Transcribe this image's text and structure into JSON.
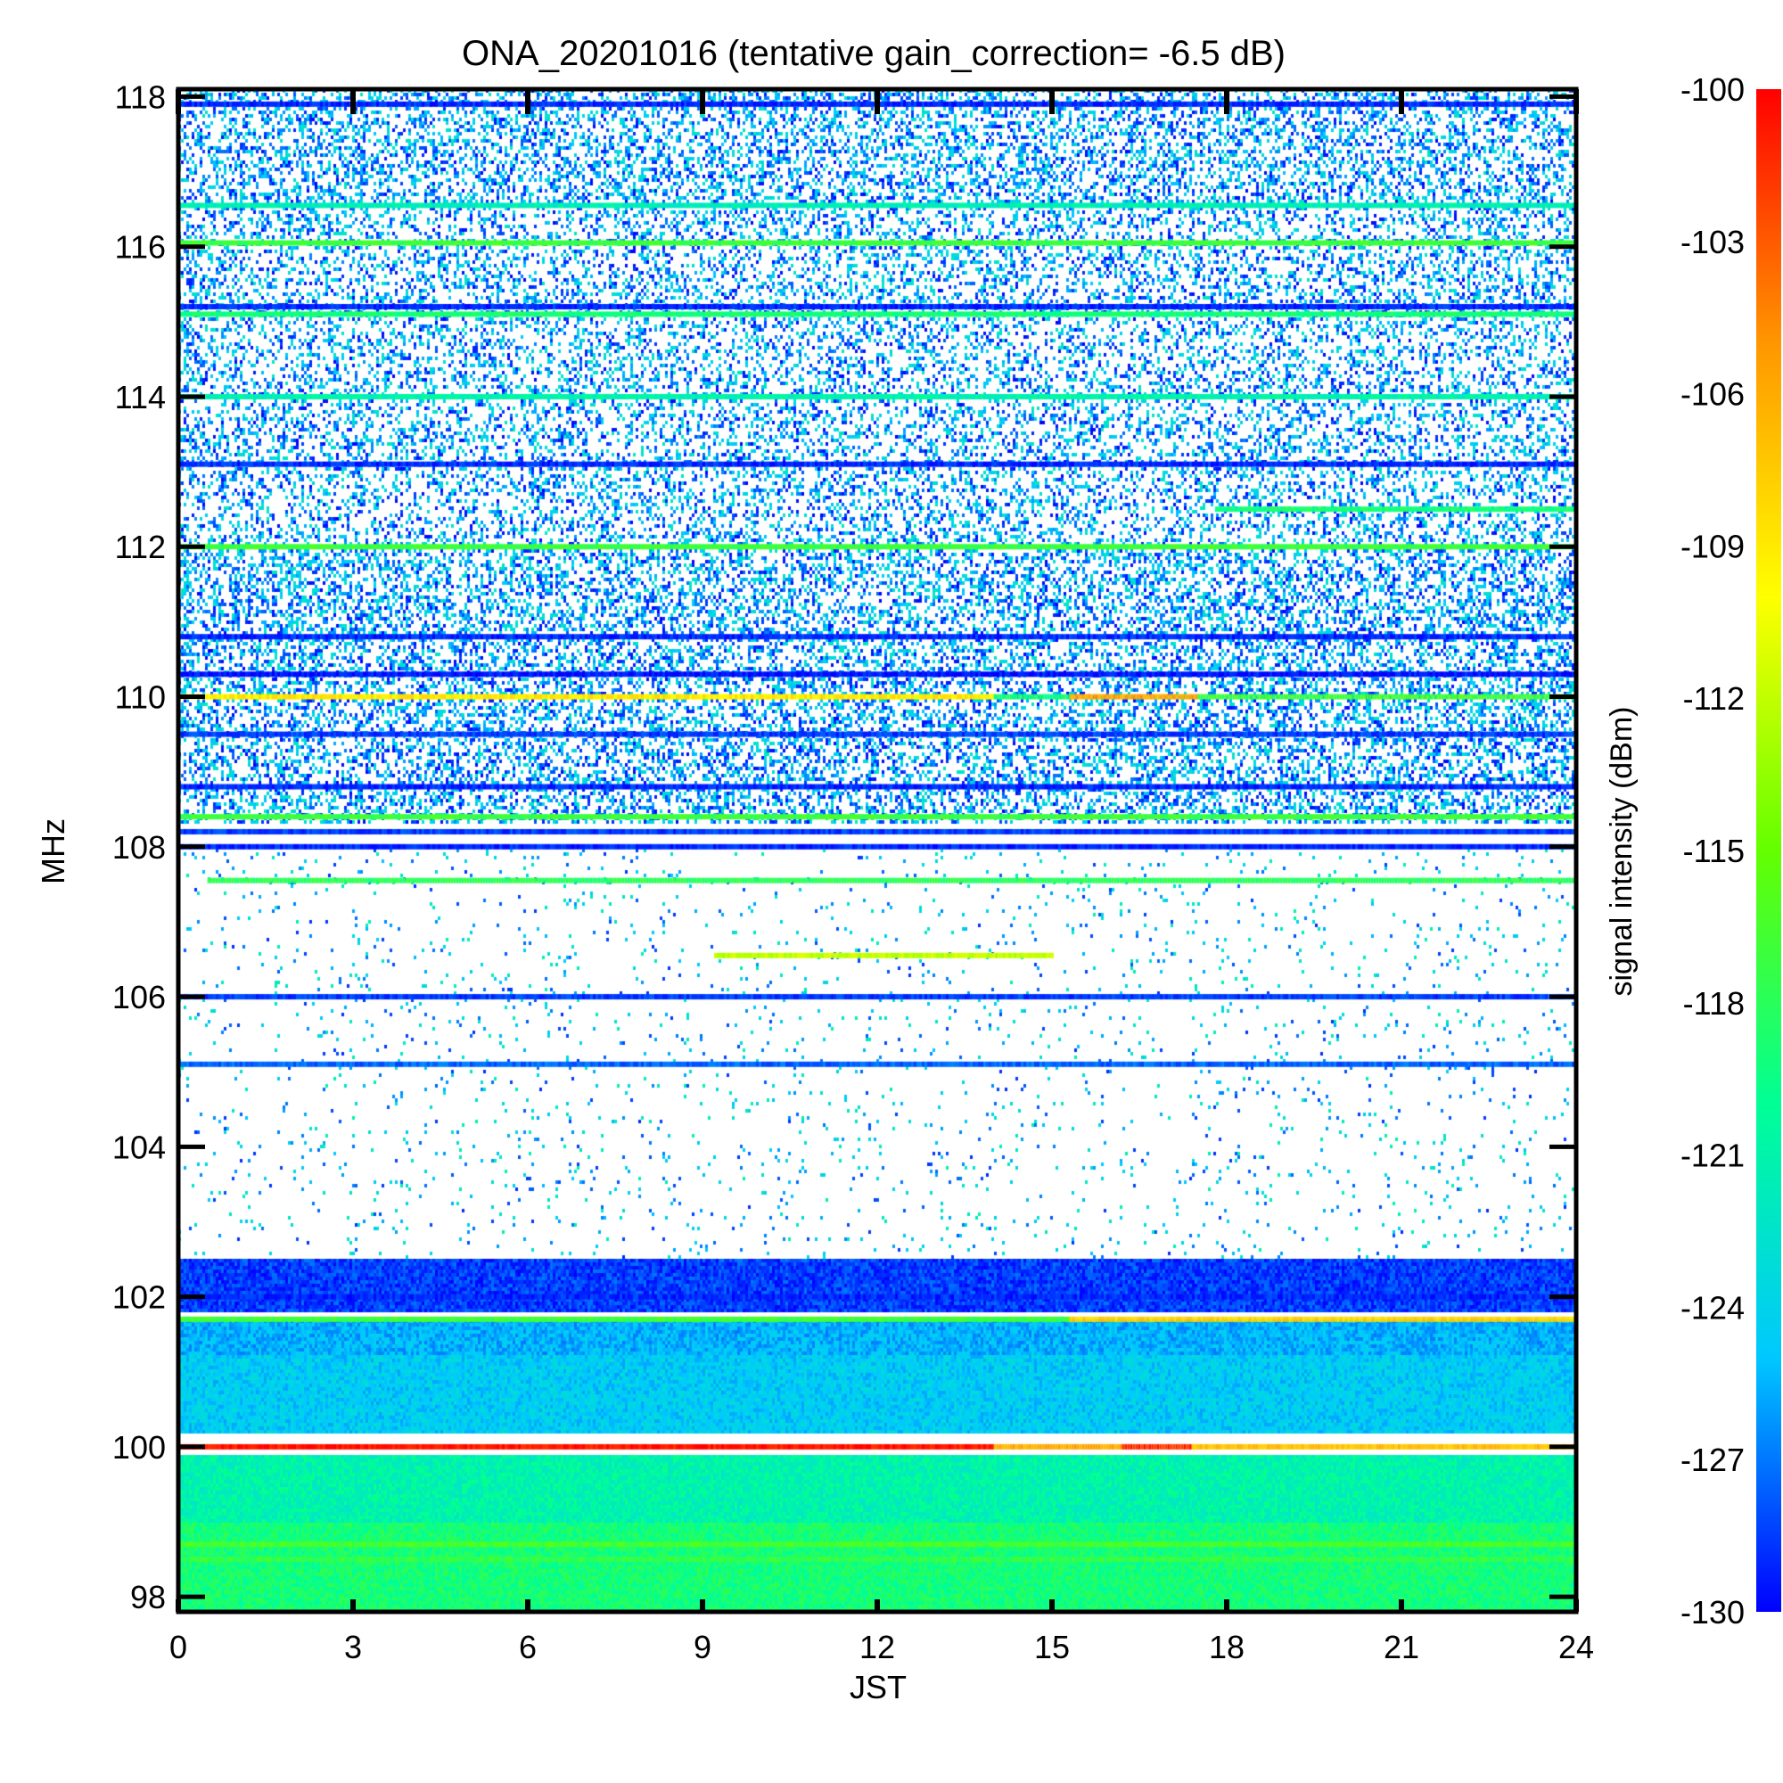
{
  "chart_data": {
    "type": "heatmap",
    "title": "ONA_20201016 (tentative gain_correction= -6.5 dB)",
    "xlabel": "JST",
    "ylabel": "MHz",
    "xlim": [
      0,
      24
    ],
    "ylim": [
      97.8,
      118.1
    ],
    "x_ticks": [
      "0",
      "3",
      "6",
      "9",
      "12",
      "15",
      "18",
      "21",
      "24"
    ],
    "y_ticks": [
      "98",
      "100",
      "102",
      "104",
      "106",
      "108",
      "110",
      "112",
      "114",
      "116",
      "118"
    ],
    "colorbar": {
      "label": "signal intensity (dBm)",
      "range": [
        -130,
        -100
      ],
      "ticks": [
        "-100",
        "-103",
        "-106",
        "-109",
        "-112",
        "-115",
        "-118",
        "-121",
        "-124",
        "-127",
        "-130"
      ],
      "colormap": [
        "#0000ff",
        "#00c8ff",
        "#00ff96",
        "#64ff00",
        "#ffff00",
        "#ff9600",
        "#ff0000"
      ]
    },
    "noise_floor_dbm": -131,
    "bands": [
      {
        "f0": 97.8,
        "f1": 99.0,
        "x0": 0,
        "x1": 24,
        "level": -119,
        "density": 1.0
      },
      {
        "f0": 99.0,
        "f1": 99.9,
        "x0": 0,
        "x1": 24,
        "level": -121,
        "density": 1.0
      },
      {
        "f0": 100.2,
        "f1": 101.2,
        "x0": 0,
        "x1": 24,
        "level": -124.5,
        "density": 1.0
      },
      {
        "f0": 101.2,
        "f1": 101.7,
        "x0": 0,
        "x1": 24,
        "level": -125.5,
        "density": 1.0
      },
      {
        "f0": 101.8,
        "f1": 102.5,
        "x0": 0,
        "x1": 24,
        "level": -128.5,
        "density": 1.0
      },
      {
        "f0": 102.5,
        "f1": 108.0,
        "x0": 0,
        "x1": 24,
        "level": -128,
        "density": 0.04
      },
      {
        "f0": 108.3,
        "f1": 112.0,
        "x0": 0,
        "x1": 24,
        "level": -129,
        "density": 0.42
      },
      {
        "f0": 112.0,
        "f1": 116.6,
        "x0": 0,
        "x1": 24,
        "level": -129,
        "density": 0.32
      },
      {
        "f0": 116.6,
        "f1": 118.1,
        "x0": 0,
        "x1": 24,
        "level": -129,
        "density": 0.38
      }
    ],
    "lines": [
      {
        "freq": 98.7,
        "x0": 0,
        "x1": 24,
        "level": -116.5
      },
      {
        "freq": 98.5,
        "x0": 0,
        "x1": 24,
        "level": -117.5
      },
      {
        "freq": 100.0,
        "x0": 0,
        "x1": 14.0,
        "level": -100.8
      },
      {
        "freq": 100.0,
        "x0": 14.0,
        "x1": 16.2,
        "level": -106
      },
      {
        "freq": 100.0,
        "x0": 16.2,
        "x1": 17.4,
        "level": -101.5
      },
      {
        "freq": 100.0,
        "x0": 17.4,
        "x1": 24,
        "level": -107
      },
      {
        "freq": 101.7,
        "x0": 0,
        "x1": 15.3,
        "level": -117
      },
      {
        "freq": 101.7,
        "x0": 15.3,
        "x1": 24,
        "level": -108
      },
      {
        "freq": 102.0,
        "x0": 0,
        "x1": 24,
        "level": -129
      },
      {
        "freq": 105.1,
        "x0": 0,
        "x1": 24,
        "level": -127.5
      },
      {
        "freq": 106.0,
        "x0": 0,
        "x1": 24,
        "level": -128.5
      },
      {
        "freq": 106.55,
        "x0": 9.2,
        "x1": 15.0,
        "level": -112
      },
      {
        "freq": 107.55,
        "x0": 0.5,
        "x1": 24,
        "level": -118
      },
      {
        "freq": 108.0,
        "x0": 0,
        "x1": 24,
        "level": -129
      },
      {
        "freq": 108.2,
        "x0": 0,
        "x1": 24,
        "level": -128.5
      },
      {
        "freq": 108.4,
        "x0": 0,
        "x1": 24,
        "level": -117
      },
      {
        "freq": 108.8,
        "x0": 0,
        "x1": 24,
        "level": -129
      },
      {
        "freq": 109.5,
        "x0": 0,
        "x1": 24,
        "level": -128.5
      },
      {
        "freq": 110.0,
        "x0": 0,
        "x1": 14.0,
        "level": -109
      },
      {
        "freq": 110.0,
        "x0": 14.0,
        "x1": 15.3,
        "level": -119
      },
      {
        "freq": 110.0,
        "x0": 15.3,
        "x1": 17.5,
        "level": -106
      },
      {
        "freq": 110.0,
        "x0": 17.5,
        "x1": 24,
        "level": -117
      },
      {
        "freq": 110.3,
        "x0": 0,
        "x1": 24,
        "level": -129.5
      },
      {
        "freq": 110.8,
        "x0": 0,
        "x1": 24,
        "level": -129
      },
      {
        "freq": 112.0,
        "x0": 0,
        "x1": 24,
        "level": -117
      },
      {
        "freq": 112.5,
        "x0": 17.8,
        "x1": 24,
        "level": -119
      },
      {
        "freq": 113.1,
        "x0": 0,
        "x1": 24,
        "level": -129
      },
      {
        "freq": 114.0,
        "x0": 0,
        "x1": 24,
        "level": -121
      },
      {
        "freq": 115.1,
        "x0": 0,
        "x1": 24,
        "level": -119
      },
      {
        "freq": 115.2,
        "x0": 0,
        "x1": 24,
        "level": -129
      },
      {
        "freq": 116.05,
        "x0": 0,
        "x1": 24,
        "level": -117
      },
      {
        "freq": 116.55,
        "x0": 0,
        "x1": 24,
        "level": -121.5
      },
      {
        "freq": 117.9,
        "x0": 0,
        "x1": 24,
        "level": -129
      }
    ]
  }
}
